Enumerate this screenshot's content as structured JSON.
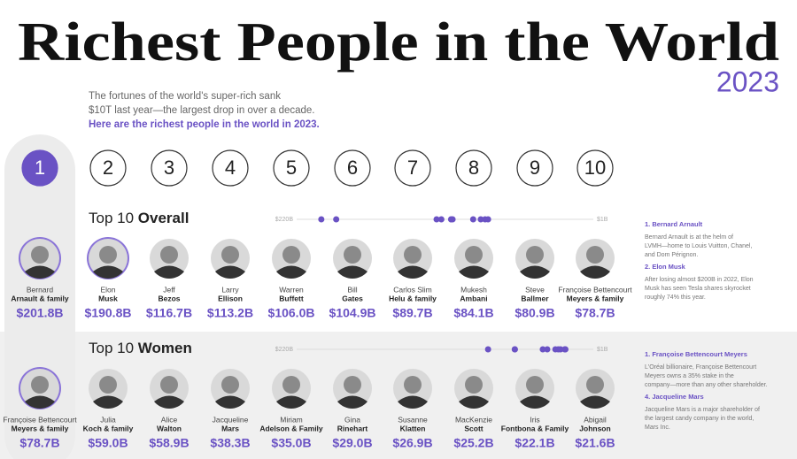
{
  "header": {
    "title": "Richest People in the World",
    "year": "2023",
    "description": [
      "The fortunes of the world's super-rich sank",
      "$10T last year—the largest drop in over a decade."
    ],
    "highlight": "Here are the richest people in the world in 2023."
  },
  "ranks": [
    "1",
    "2",
    "3",
    "4",
    "5",
    "6",
    "7",
    "8",
    "9",
    "10"
  ],
  "sections": [
    {
      "title_regular": "Top 10 ",
      "title_bold": "Overall",
      "scale": [
        {
          "value": 220,
          "label": "$220B"
        },
        {
          "value": 1,
          "label": "$1B"
        }
      ],
      "people": [
        {
          "name": [
            "Bernard",
            "Arnault & family"
          ],
          "worth": 201.8,
          "worth_label": "$201.8B"
        },
        {
          "name": [
            "Elon",
            "Musk"
          ],
          "worth": 190.8,
          "worth_label": "$190.8B"
        },
        {
          "name": [
            "Jeff",
            "Bezos"
          ],
          "worth": 116.7,
          "worth_label": "$116.7B"
        },
        {
          "name": [
            "Larry",
            "Ellison"
          ],
          "worth": 113.2,
          "worth_label": "$113.2B"
        },
        {
          "name": [
            "Warren",
            "Buffett"
          ],
          "worth": 106.0,
          "worth_label": "$106.0B"
        },
        {
          "name": [
            "Bill",
            "Gates"
          ],
          "worth": 104.9,
          "worth_label": "$104.9B"
        },
        {
          "name": [
            "Carlos Slim",
            "Helu & family"
          ],
          "worth": 89.7,
          "worth_label": "$89.7B"
        },
        {
          "name": [
            "Mukesh",
            "Ambani"
          ],
          "worth": 84.1,
          "worth_label": "$84.1B"
        },
        {
          "name": [
            "Steve",
            "Ballmer"
          ],
          "worth": 80.9,
          "worth_label": "$80.9B"
        },
        {
          "name": [
            "Françoise Bettencourt",
            "Meyers & family"
          ],
          "worth": 78.7,
          "worth_label": "$78.7B"
        }
      ],
      "notes": [
        {
          "title": "1. Bernard Arnault",
          "lines": [
            "Bernard Arnault is at the helm of",
            "LVMH—home to Louis Vuitton, Chanel,",
            "and Dom Pérignon."
          ]
        },
        {
          "title": "2. Elon Musk",
          "lines": [
            "After losing almost $200B in 2022, Elon",
            "Musk has seen Tesla shares skyrocket",
            "roughly 74% this year."
          ]
        }
      ]
    },
    {
      "title_regular": "Top 10 ",
      "title_bold": "Women",
      "scale": [
        {
          "value": 220,
          "label": "$220B"
        },
        {
          "value": 1,
          "label": "$1B"
        }
      ],
      "people": [
        {
          "name": [
            "Françoise Bettencourt",
            "Meyers & family"
          ],
          "worth": 78.7,
          "worth_label": "$78.7B"
        },
        {
          "name": [
            "Julia",
            "Koch & family"
          ],
          "worth": 59.0,
          "worth_label": "$59.0B"
        },
        {
          "name": [
            "Alice",
            "Walton"
          ],
          "worth": 58.9,
          "worth_label": "$58.9B"
        },
        {
          "name": [
            "Jacqueline",
            "Mars"
          ],
          "worth": 38.3,
          "worth_label": "$38.3B"
        },
        {
          "name": [
            "Miriam",
            "Adelson & Family"
          ],
          "worth": 35.0,
          "worth_label": "$35.0B"
        },
        {
          "name": [
            "Gina",
            "Rinehart"
          ],
          "worth": 29.0,
          "worth_label": "$29.0B"
        },
        {
          "name": [
            "Susanne",
            "Klatten"
          ],
          "worth": 26.9,
          "worth_label": "$26.9B"
        },
        {
          "name": [
            "MacKenzie",
            "Scott"
          ],
          "worth": 25.2,
          "worth_label": "$25.2B"
        },
        {
          "name": [
            "Iris",
            "Fontbona & Family"
          ],
          "worth": 22.1,
          "worth_label": "$22.1B"
        },
        {
          "name": [
            "Abigail",
            "Johnson"
          ],
          "worth": 21.6,
          "worth_label": "$21.6B"
        }
      ],
      "notes": [
        {
          "title": "1. Françoise Bettencourt Meyers",
          "lines": [
            "L'Oréal billionaire, Françoise Bettencourt",
            "Meyers owns a 35% stake in the",
            "company—more than any other shareholder."
          ]
        },
        {
          "title": "4. Jacqueline Mars",
          "lines": [
            "Jacqueline Mars is a major shareholder of",
            "the largest candy company in the world,",
            "Mars Inc."
          ]
        }
      ]
    }
  ]
}
